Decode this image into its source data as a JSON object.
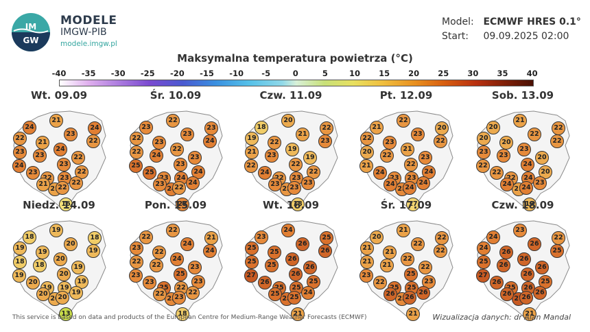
{
  "brand": {
    "title": "MODELE",
    "subtitle": "IMGW-PIB",
    "url": "modele.imgw.pl",
    "logo_text": "IMGW"
  },
  "meta": {
    "model_key": "Model:",
    "model_value": "ECMWF HRES 0.1°",
    "start_key": "Start:",
    "start_value": "09.09.2025 02:00"
  },
  "title": "Maksymalna temperatura powietrza (°C)",
  "scale": {
    "labels": [
      "-40",
      "-35",
      "-30",
      "-25",
      "-20",
      "-15",
      "-10",
      "-5",
      "0",
      "5",
      "10",
      "15",
      "20",
      "25",
      "30",
      "35",
      "40"
    ]
  },
  "colors": {
    "13": "#c9dc4a",
    "16": "#f6e27a",
    "17": "#f4d672",
    "18": "#f1cd68",
    "19": "#eeb95a",
    "20": "#ecaa4e",
    "21": "#eba248",
    "22": "#e89642",
    "23": "#e68a3a",
    "24": "#e17f33",
    "25": "#d9712c",
    "26": "#d06628",
    "27": "#c85a22"
  },
  "days": [
    {
      "label": "Wt. 09.09",
      "values": [
        21,
        24,
        24,
        22,
        23,
        21,
        22,
        23,
        24,
        23,
        22,
        24,
        23,
        23,
        22,
        22,
        23,
        22,
        21,
        21,
        22,
        16
      ]
    },
    {
      "label": "Śr. 10.09",
      "values": [
        22,
        23,
        23,
        22,
        23,
        23,
        24,
        22,
        22,
        24,
        23,
        25,
        25,
        23,
        24,
        23,
        24,
        24,
        24,
        23,
        22,
        23
      ]
    },
    {
      "label": "Czw. 11.09",
      "values": [
        20,
        18,
        22,
        19,
        21,
        22,
        23,
        21,
        19,
        23,
        19,
        22,
        24,
        22,
        22,
        22,
        23,
        23,
        22,
        23,
        23,
        18
      ]
    },
    {
      "label": "Pt. 12.09",
      "values": [
        22,
        21,
        20,
        22,
        23,
        23,
        22,
        20,
        21,
        22,
        23,
        21,
        24,
        22,
        24,
        23,
        23,
        24,
        23,
        24,
        24,
        17
      ]
    },
    {
      "label": "Sob. 13.09",
      "values": [
        21,
        20,
        22,
        20,
        22,
        20,
        22,
        23,
        23,
        23,
        20,
        22,
        22,
        24,
        20,
        22,
        24,
        23,
        21,
        24,
        24,
        19
      ]
    },
    {
      "label": "Niedz. 14.09",
      "values": [
        19,
        18,
        18,
        19,
        20,
        19,
        19,
        18,
        20,
        18,
        19,
        19,
        20,
        20,
        19,
        19,
        19,
        19,
        20,
        20,
        20,
        13
      ]
    },
    {
      "label": "Pon. 15.09",
      "values": [
        22,
        22,
        21,
        23,
        24,
        22,
        24,
        22,
        24,
        22,
        23,
        23,
        23,
        25,
        23,
        25,
        22,
        22,
        23,
        22,
        23,
        18
      ]
    },
    {
      "label": "Wt. 16.09",
      "values": [
        24,
        23,
        25,
        25,
        26,
        25,
        26,
        25,
        26,
        25,
        26,
        27,
        26,
        26,
        25,
        25,
        25,
        24,
        25,
        25,
        25,
        21
      ]
    },
    {
      "label": "Śr. 17.09",
      "values": [
        21,
        20,
        22,
        21,
        22,
        21,
        22,
        21,
        22,
        21,
        22,
        23,
        22,
        25,
        23,
        25,
        25,
        26,
        23,
        26,
        26,
        21
      ]
    },
    {
      "label": "Czw. 18.09",
      "values": [
        23,
        24,
        22,
        24,
        26,
        26,
        25,
        25,
        26,
        26,
        26,
        27,
        26,
        26,
        25,
        25,
        26,
        26,
        27,
        26,
        26,
        21
      ]
    }
  ],
  "footer": {
    "left": "This service is based on data and products of the European Centre for Medium-Range Weather Forecasts (ECMWF)",
    "right": "Wizualizacja danych: dr Alan Mandal"
  }
}
